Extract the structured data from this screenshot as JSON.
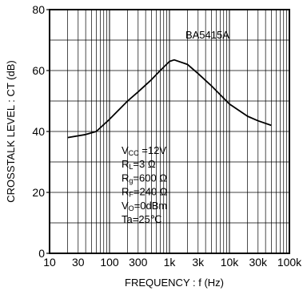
{
  "chart_data": {
    "type": "line",
    "title": "",
    "xlabel": "FREQUENCY : f (Hz)",
    "ylabel": "CROSSTALK LEVEL : CT (dB)",
    "x_scale": "log",
    "xlim": [
      10,
      100000
    ],
    "ylim": [
      0,
      80
    ],
    "grid": true,
    "x_ticks": [
      10,
      30,
      100,
      300,
      1000,
      3000,
      10000,
      30000,
      100000
    ],
    "x_tick_labels": [
      "10",
      "30",
      "100",
      "300",
      "1k",
      "3k",
      "10k",
      "30k",
      "100k"
    ],
    "y_ticks": [
      0,
      20,
      40,
      60,
      80
    ],
    "y_tick_labels": [
      "0",
      "20",
      "40",
      "60",
      "80"
    ],
    "series": [
      {
        "name": "BA5415A",
        "x": [
          20,
          40,
          60,
          100,
          200,
          300,
          500,
          700,
          1000,
          1200,
          2000,
          3000,
          5000,
          10000,
          20000,
          30000,
          50000
        ],
        "y": [
          38,
          39,
          40,
          44,
          50,
          53,
          57,
          60,
          63,
          63.5,
          62,
          59,
          55,
          49,
          45,
          43.5,
          42
        ]
      }
    ],
    "conditions": [
      {
        "main": "V",
        "sub": "CC",
        "rest": " =12V"
      },
      {
        "main": "R",
        "sub": "L",
        "rest": "=3 Ω"
      },
      {
        "main": "R",
        "sub": "g",
        "rest": "=600 Ω"
      },
      {
        "main": "R",
        "sub": "F",
        "rest": "=240 Ω"
      },
      {
        "main": "V",
        "sub": "O",
        "rest": "=0dBm"
      },
      {
        "main": "Ta",
        "sub": "",
        "rest": "=25℃"
      }
    ]
  }
}
